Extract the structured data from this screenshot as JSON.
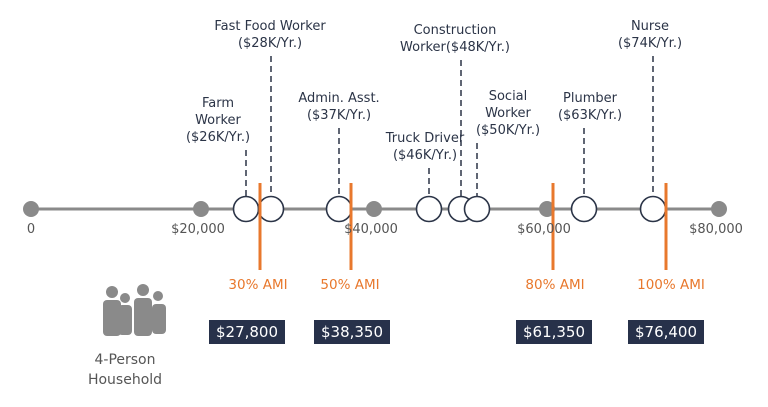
{
  "axis": {
    "ticks": [
      {
        "value": 0,
        "label": "0"
      },
      {
        "value": 20000,
        "label": "$20,000"
      },
      {
        "value": 40000,
        "label": "$40,000"
      },
      {
        "value": 60000,
        "label": "$60,000"
      },
      {
        "value": 80000,
        "label": "$80,000"
      }
    ]
  },
  "occupations": [
    {
      "name": "Farm\nWorker",
      "salary": "($26K/Yr.)",
      "value": 26000
    },
    {
      "name": "Fast Food Worker",
      "salary": "($28K/Yr.)",
      "value": 28000
    },
    {
      "name": "Admin. Asst.",
      "salary": "($37K/Yr.)",
      "value": 37000
    },
    {
      "name": "Truck Driver",
      "salary": "($46K/Yr.)",
      "value": 46000
    },
    {
      "name": "Construction\nWorker($48K/Yr.)",
      "salary": "",
      "value": 48000
    },
    {
      "name": "Social\nWorker",
      "salary": "($50K/Yr.)",
      "value": 50000
    },
    {
      "name": "Plumber",
      "salary": "($63K/Yr.)",
      "value": 63000
    },
    {
      "name": "Nurse",
      "salary": "($74K/Yr.)",
      "value": 74000
    }
  ],
  "ami_levels": [
    {
      "label": "30% AMI",
      "amount": "$27,800",
      "value": 27800
    },
    {
      "label": "50% AMI",
      "amount": "$38,350",
      "value": 38350
    },
    {
      "label": "80% AMI",
      "amount": "$61,350",
      "value": 61350
    },
    {
      "label": "100% AMI",
      "amount": "$76,400",
      "value": 76400
    }
  ],
  "household": {
    "label": "4-Person\nHousehold",
    "icon": "family-icon"
  },
  "colors": {
    "axis": "#8a8a8a",
    "ami": "#e8782d",
    "box": "#27314a",
    "text": "#2b3447"
  }
}
